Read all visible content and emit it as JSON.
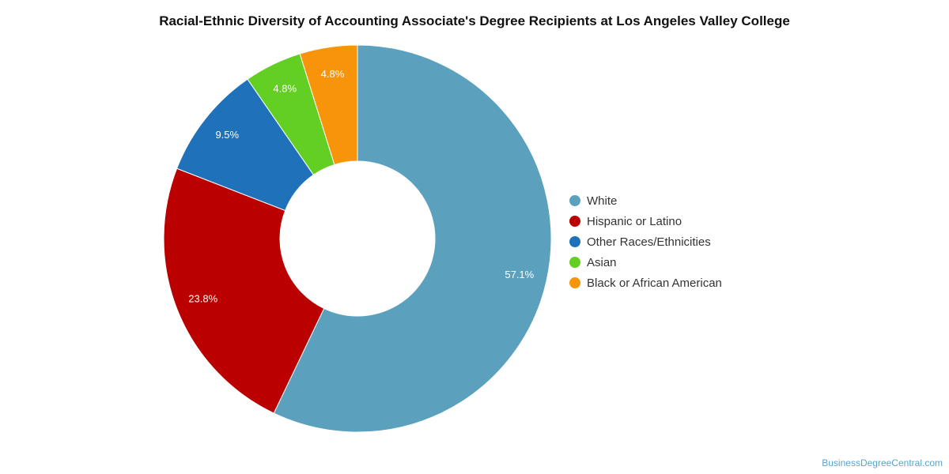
{
  "chart_data": {
    "type": "pie",
    "title": "Racial-Ethnic Diversity of Accounting Associate's Degree Recipients at Los Angeles Valley College",
    "labels": [
      "White",
      "Hispanic or Latino",
      "Other Races/Ethnicities",
      "Asian",
      "Black or African American"
    ],
    "values": [
      57.1,
      23.8,
      9.5,
      4.8,
      4.8
    ],
    "value_labels": [
      "57.1%",
      "23.8%",
      "9.5%",
      "4.8%",
      "4.8%"
    ],
    "colors": [
      "#5ba1be",
      "#bb0000",
      "#1f72ba",
      "#62cf22",
      "#f7940a"
    ],
    "donut": true,
    "legend_position": "right"
  },
  "watermark": "BusinessDegreeCentral.com"
}
